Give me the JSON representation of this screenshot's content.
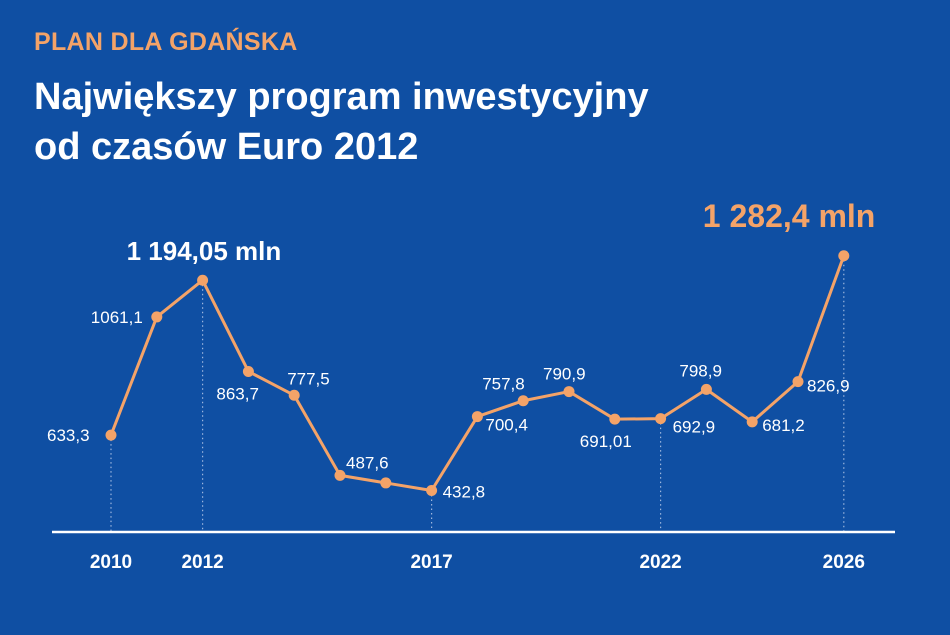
{
  "header": {
    "kicker": "PLAN DLA GDAŃSKA",
    "title_line1": "Największy program inwestycyjny",
    "title_line2": "od czasów Euro 2012"
  },
  "colors": {
    "background": "#0f4fa3",
    "line": "#f4a368",
    "accent_text": "#f4a368",
    "text": "#ffffff"
  },
  "chart_data": {
    "type": "line",
    "x": [
      2010,
      2011,
      2012,
      2013,
      2014,
      2015,
      2016,
      2017,
      2018,
      2019,
      2020,
      2021,
      2022,
      2023,
      2024,
      2025,
      2026
    ],
    "values": [
      633.3,
      1061.1,
      1194.05,
      863.7,
      777.5,
      487.6,
      null,
      432.8,
      700.4,
      757.8,
      790.9,
      691.01,
      692.9,
      798.9,
      681.2,
      826.9,
      1282.4
    ],
    "point_labels": [
      "633,3",
      "1061,1",
      "1 194,05 mln",
      "863,7",
      "777,5",
      "487,6",
      "",
      "432,8",
      "700,4",
      "757,8",
      "790,9",
      "691,01",
      "692,9",
      "798,9",
      "681,2",
      "826,9",
      "1 282,4 mln"
    ],
    "x_tick_labels": [
      "2010",
      "2012",
      "2017",
      "2022",
      "2026"
    ],
    "x_ticks": [
      2010,
      2012,
      2017,
      2022,
      2026
    ],
    "dotted_guides_at": [
      2010,
      2012,
      2017,
      2022,
      2026
    ],
    "y_range": [
      432.8,
      1282.4
    ],
    "grid": false,
    "legend": "none"
  }
}
